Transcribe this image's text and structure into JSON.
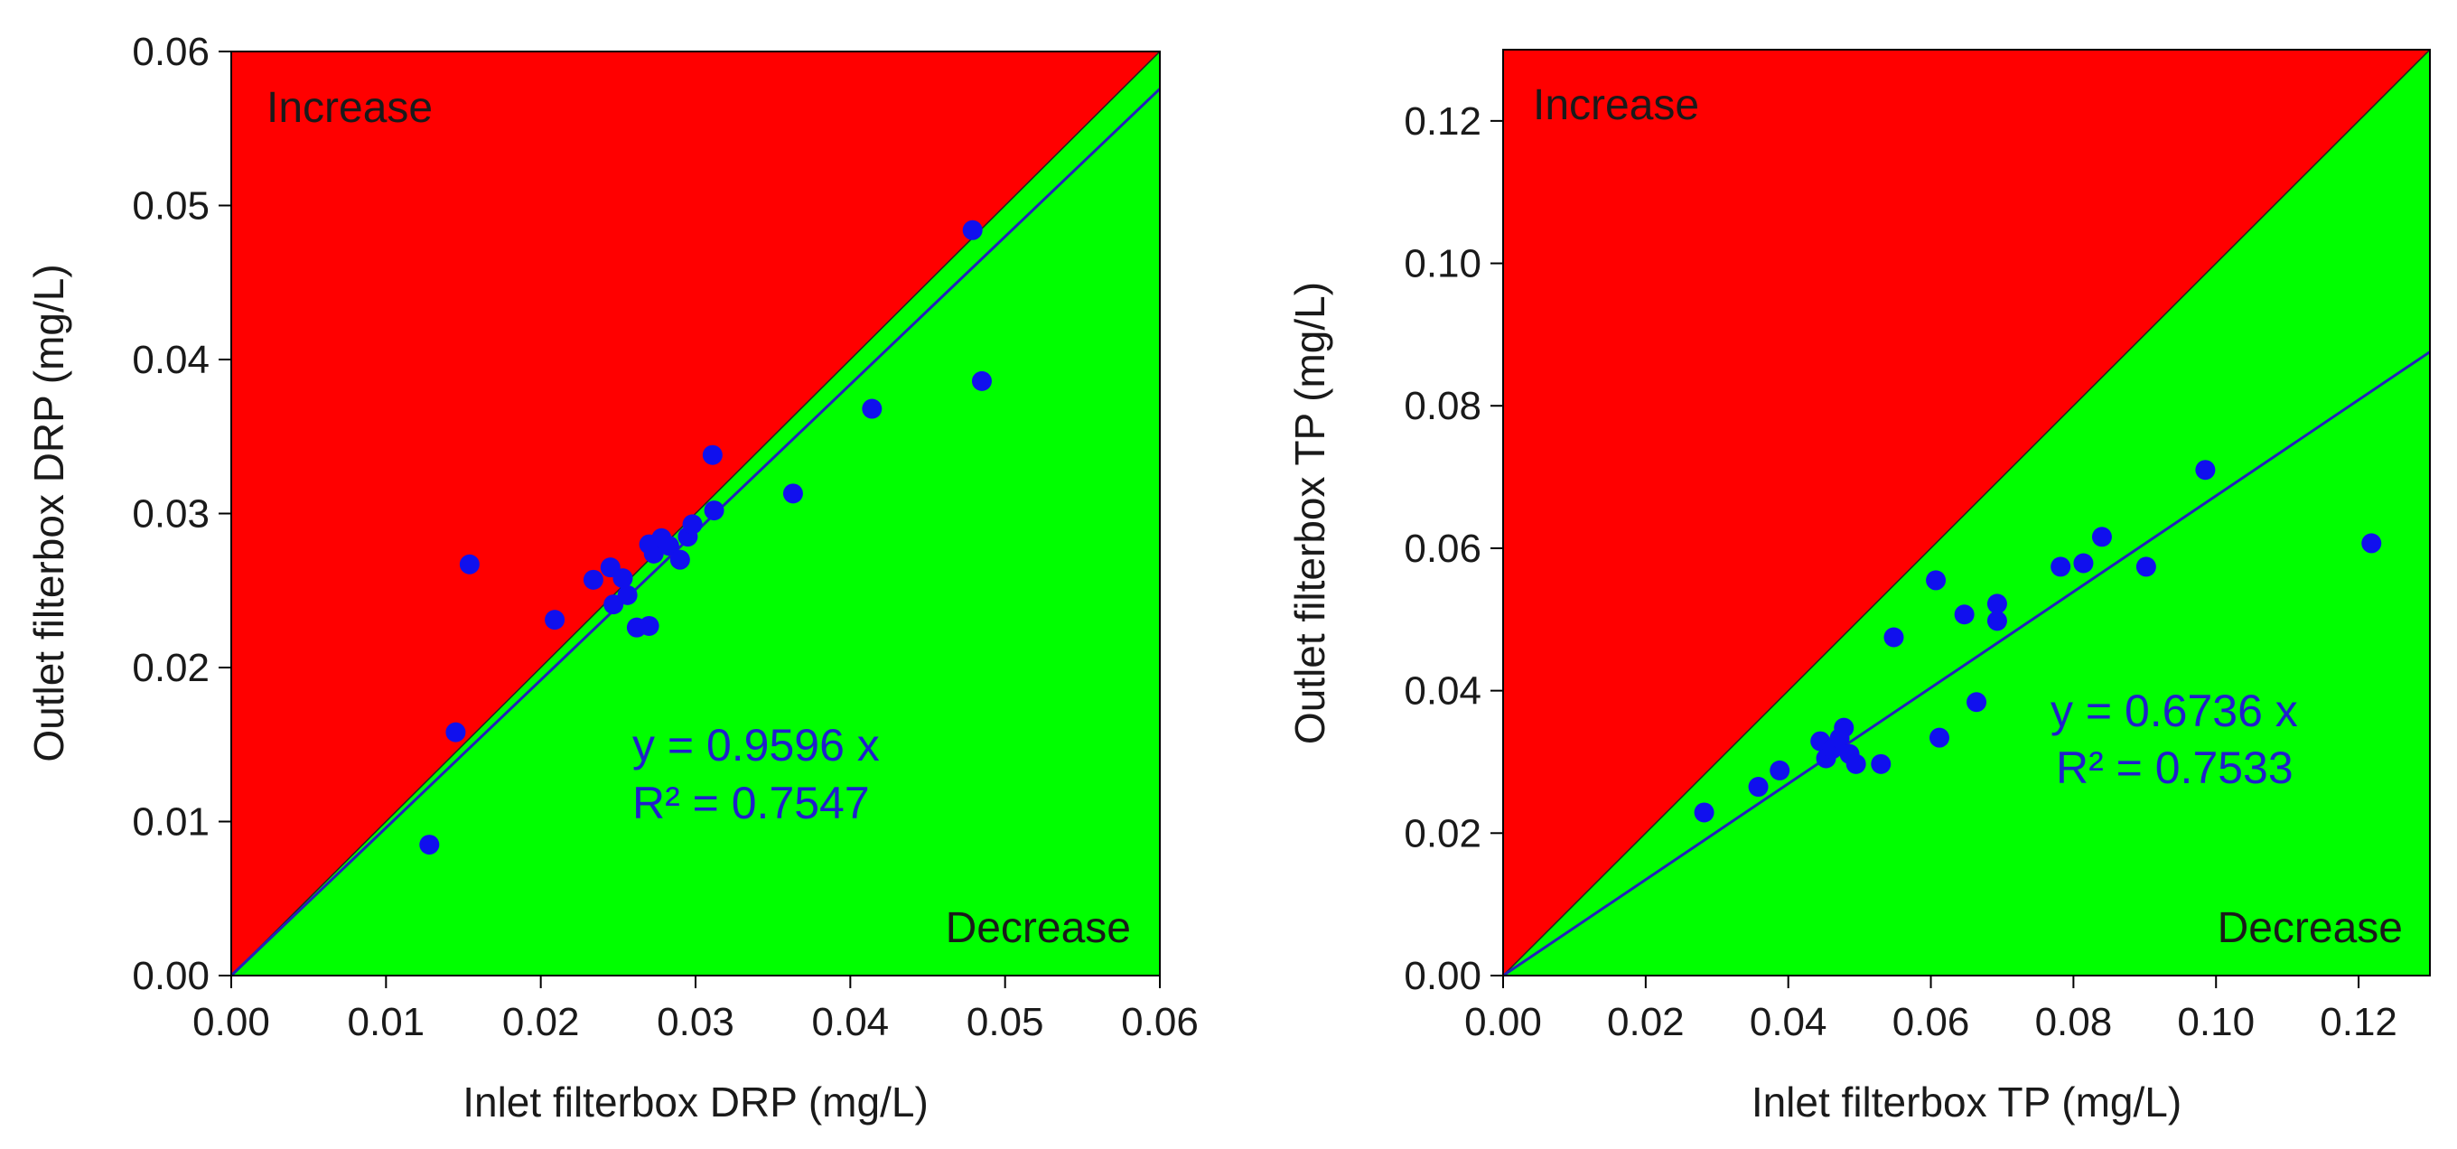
{
  "chart_data": [
    {
      "type": "scatter",
      "xlabel": "Inlet filterbox DRP (mg/L)",
      "ylabel": "Outlet filterbox DRP (mg/L)",
      "xlim": [
        0,
        0.06
      ],
      "ylim": [
        0,
        0.06
      ],
      "xticks": [
        "0.00",
        "0.01",
        "0.02",
        "0.03",
        "0.04",
        "0.05",
        "0.06"
      ],
      "yticks": [
        "0.00",
        "0.01",
        "0.02",
        "0.03",
        "0.04",
        "0.05",
        "0.06"
      ],
      "region_labels": {
        "upper": "Increase",
        "lower": "Decrease"
      },
      "colors": {
        "upper": "#ff0000",
        "lower": "#00ff00",
        "points": "#1010ee",
        "line": "#2222bb"
      },
      "fit": {
        "slope": 0.9596,
        "equation": "y = 0.9596 x",
        "r2": "R² = 0.7547"
      },
      "points": [
        [
          0.0128,
          0.0085
        ],
        [
          0.0145,
          0.0158
        ],
        [
          0.0154,
          0.0267
        ],
        [
          0.0209,
          0.0231
        ],
        [
          0.0234,
          0.0257
        ],
        [
          0.0245,
          0.0265
        ],
        [
          0.0247,
          0.0241
        ],
        [
          0.0253,
          0.0258
        ],
        [
          0.0256,
          0.0247
        ],
        [
          0.0262,
          0.0226
        ],
        [
          0.027,
          0.0227
        ],
        [
          0.027,
          0.028
        ],
        [
          0.0273,
          0.0274
        ],
        [
          0.0278,
          0.0284
        ],
        [
          0.0283,
          0.0279
        ],
        [
          0.029,
          0.027
        ],
        [
          0.0295,
          0.0285
        ],
        [
          0.0298,
          0.0293
        ],
        [
          0.0312,
          0.0302
        ],
        [
          0.0311,
          0.0338
        ],
        [
          0.0363,
          0.0313
        ],
        [
          0.0414,
          0.0368
        ],
        [
          0.0479,
          0.0484
        ],
        [
          0.0485,
          0.0386
        ]
      ]
    },
    {
      "type": "scatter",
      "xlabel": "Inlet filterbox TP (mg/L)",
      "ylabel": "Outlet filterbox TP (mg/L)",
      "xlim": [
        0,
        0.13
      ],
      "ylim": [
        0,
        0.13
      ],
      "xticks": [
        "0.00",
        "0.02",
        "0.04",
        "0.06",
        "0.08",
        "0.10",
        "0.12"
      ],
      "yticks": [
        "0.00",
        "0.02",
        "0.04",
        "0.06",
        "0.08",
        "0.10",
        "0.12"
      ],
      "region_labels": {
        "upper": "Increase",
        "lower": "Decrease"
      },
      "colors": {
        "upper": "#ff0000",
        "lower": "#00ff00",
        "points": "#1010ee",
        "line": "#2222bb"
      },
      "fit": {
        "slope": 0.6736,
        "equation": "y = 0.6736 x",
        "r2": "R² = 0.7533"
      },
      "points": [
        [
          0.0282,
          0.0229
        ],
        [
          0.0358,
          0.0265
        ],
        [
          0.0388,
          0.0288
        ],
        [
          0.0445,
          0.0329
        ],
        [
          0.0453,
          0.0305
        ],
        [
          0.0462,
          0.0318
        ],
        [
          0.0472,
          0.0333
        ],
        [
          0.0478,
          0.0348
        ],
        [
          0.0486,
          0.0311
        ],
        [
          0.0495,
          0.0297
        ],
        [
          0.053,
          0.0297
        ],
        [
          0.0548,
          0.0475
        ],
        [
          0.0607,
          0.0555
        ],
        [
          0.0612,
          0.0334
        ],
        [
          0.0647,
          0.0507
        ],
        [
          0.0664,
          0.0384
        ],
        [
          0.0693,
          0.0498
        ],
        [
          0.0693,
          0.0522
        ],
        [
          0.0782,
          0.0574
        ],
        [
          0.0814,
          0.0579
        ],
        [
          0.084,
          0.0616
        ],
        [
          0.0902,
          0.0574
        ],
        [
          0.0985,
          0.071
        ],
        [
          0.1218,
          0.0607
        ]
      ]
    }
  ]
}
